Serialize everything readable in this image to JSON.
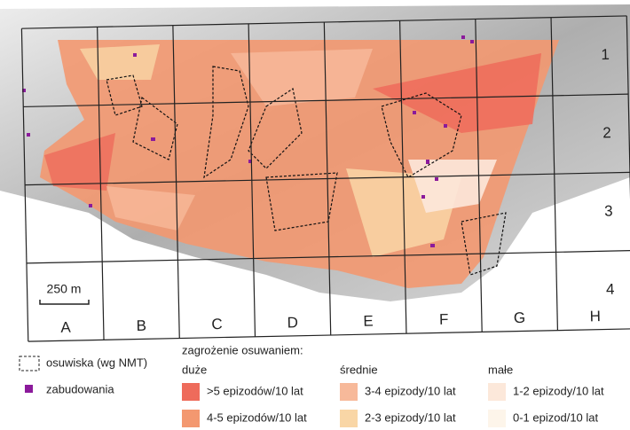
{
  "map": {
    "columns": [
      "A",
      "B",
      "C",
      "D",
      "E",
      "F",
      "G",
      "H"
    ],
    "rows": [
      "1",
      "2",
      "3",
      "4"
    ],
    "scale_bar": "250 m"
  },
  "legend": {
    "landslides": "osuwiska (wg NMT)",
    "buildings": "zabudowania",
    "title": "zagrożenie osuwaniem:",
    "groups": [
      {
        "name": "duże",
        "classes": [
          {
            "label": ">5 epizodów/10 lat",
            "color": "#ee6b5b"
          },
          {
            "label": "4-5 epizodów/10 lat",
            "color": "#f39870"
          }
        ]
      },
      {
        "name": "średnie",
        "classes": [
          {
            "label": "3-4 epizody/10 lat",
            "color": "#f7b99a"
          },
          {
            "label": "2-3 epizody/10 lat",
            "color": "#f9d6a6"
          }
        ]
      },
      {
        "name": "małe",
        "classes": [
          {
            "label": "1-2 epizody/10 lat",
            "color": "#fce8da"
          },
          {
            "label": "0-1 epizod/10 lat",
            "color": "#fdf5ea"
          }
        ]
      }
    ]
  }
}
